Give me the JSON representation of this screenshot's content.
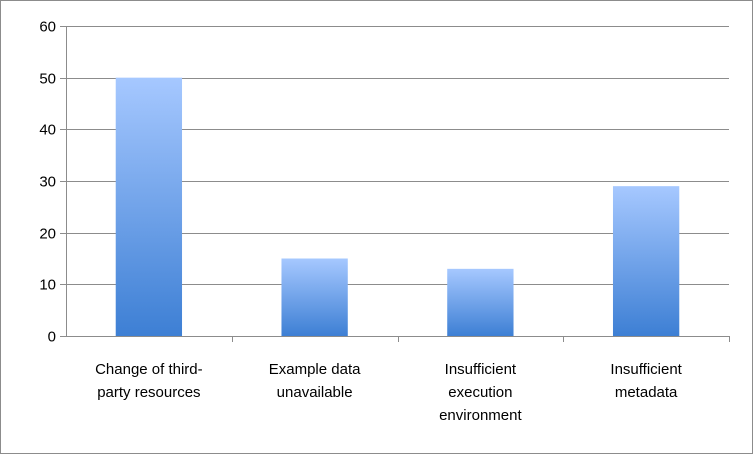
{
  "chart_data": {
    "type": "bar",
    "categories": [
      [
        "Change of third-",
        "party resources"
      ],
      [
        "Example data",
        "unavailable"
      ],
      [
        "Insufficient",
        "execution",
        "environment"
      ],
      [
        "Insufficient",
        "metadata"
      ]
    ],
    "values": [
      50,
      15,
      13,
      29
    ],
    "ylim": [
      0,
      60
    ],
    "yticks": [
      "0",
      "10",
      "20",
      "30",
      "40",
      "50",
      "60"
    ],
    "grid": true,
    "legend": "none",
    "colors": {
      "bar_top": "#a6c8ff",
      "bar_bottom": "#3d7fd4",
      "grid": "#8c8c8c",
      "axis": "#8c8c8c"
    }
  }
}
